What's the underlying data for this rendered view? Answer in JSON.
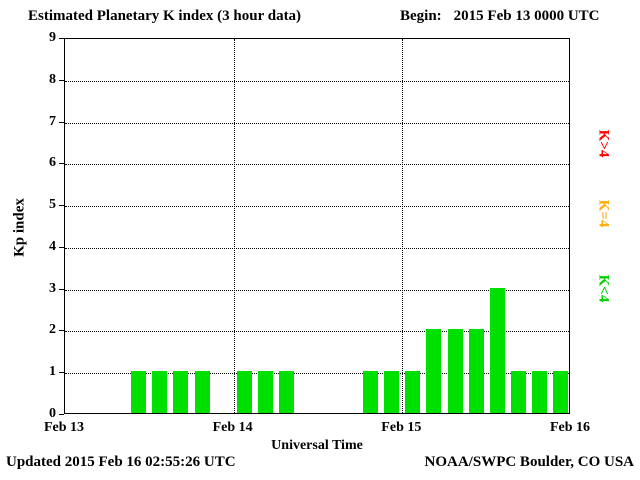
{
  "header": {
    "title": "Estimated Planetary K index (3 hour data)",
    "begin_label": "Begin:",
    "begin_value": "2015 Feb 13 0000 UTC"
  },
  "footer": {
    "updated": "Updated 2015 Feb 16 02:55:26 UTC",
    "source": "NOAA/SWPC Boulder, CO USA"
  },
  "side_labels": [
    {
      "label": "K>4",
      "color": "#ff0000"
    },
    {
      "label": "K=4",
      "color": "#ffaa00"
    },
    {
      "label": "K<4",
      "color": "#00d000"
    }
  ],
  "chart_data": {
    "type": "bar",
    "title": "Estimated Planetary K index (3 hour data)",
    "xlabel": "Universal Time",
    "ylabel": "Kp index",
    "ylim": [
      0,
      9
    ],
    "yticks": [
      0,
      1,
      2,
      3,
      4,
      5,
      6,
      7,
      8,
      9
    ],
    "xticks": [
      "Feb 13",
      "Feb 14",
      "Feb 15",
      "Feb 16"
    ],
    "interval_hours": 3,
    "begin": "2015 Feb 13 0000 UTC",
    "grid": true,
    "colors": {
      "k_lt_4": "#00e000",
      "k_eq_4": "#ffaa00",
      "k_gt_4": "#ff0000"
    },
    "bar_color_rule": "green for Kp<4, yellow for Kp=4, red for Kp>4",
    "series": [
      {
        "date": "Feb 13",
        "values": [
          0,
          0,
          0,
          1,
          1,
          1,
          1,
          0
        ]
      },
      {
        "date": "Feb 14",
        "values": [
          1,
          1,
          1,
          0,
          0,
          0,
          1,
          1
        ]
      },
      {
        "date": "Feb 15",
        "values": [
          1,
          2,
          2,
          2,
          3,
          1,
          1,
          1
        ]
      }
    ]
  }
}
